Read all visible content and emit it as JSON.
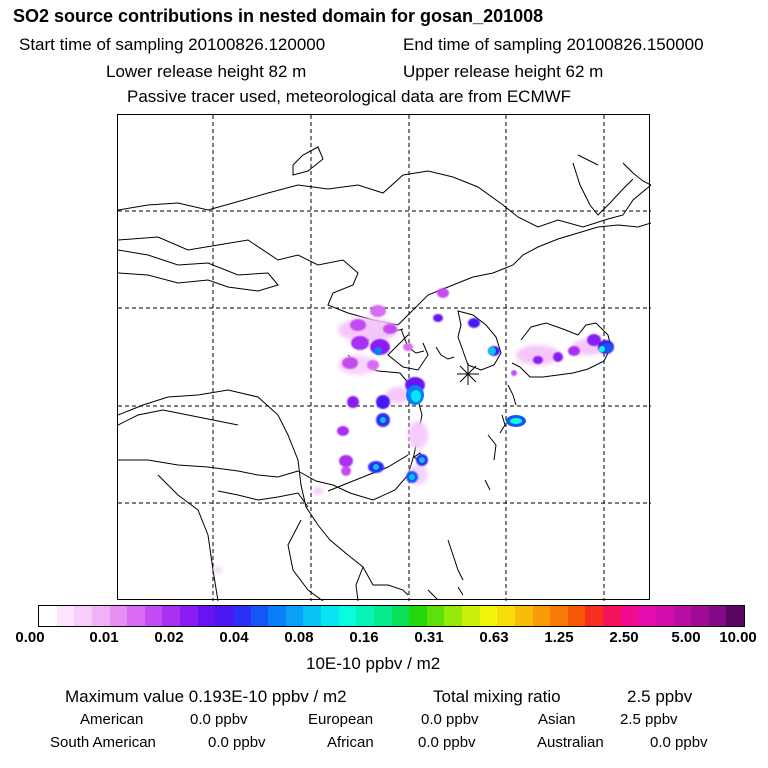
{
  "header": {
    "title": "SO2 source contributions in nested domain for gosan_201008",
    "start_label": "Start time of sampling 20100826.120000",
    "end_label": "End time of sampling 20100826.150000",
    "lower_label": "Lower release height   82 m",
    "upper_label": "Upper release height   62 m",
    "tracer_label": "Passive tracer used, meteorological data are from ECMWF"
  },
  "colorbar": {
    "ticks": [
      "0.00",
      "0.01",
      "0.02",
      "0.04",
      "0.08",
      "0.16",
      "0.31",
      "0.63",
      "1.25",
      "2.50",
      "5.00",
      "10.00"
    ],
    "unit": "10E-10 ppbv / m2",
    "colors": [
      "#ffffff",
      "#fde6fd",
      "#f8ccfb",
      "#f1b1f9",
      "#e690f6",
      "#d86af4",
      "#c44cf2",
      "#a92ff1",
      "#8a1cf2",
      "#6913f3",
      "#4b18f4",
      "#2d2ff5",
      "#1456f6",
      "#0a7ef6",
      "#09a1f6",
      "#0ac3f5",
      "#0ae4f2",
      "#0afbe0",
      "#09f3b7",
      "#09ea8b",
      "#0ae05a",
      "#22d80d",
      "#5ee10a",
      "#96ea0a",
      "#c9f10b",
      "#f4f50c",
      "#f8dc0b",
      "#f8bd0a",
      "#f89c0a",
      "#f87a09",
      "#f65608",
      "#f42f20",
      "#f4135c",
      "#f10c8d",
      "#e50dad",
      "#d20dae",
      "#b90ea4",
      "#9e0c96",
      "#820a86",
      "#5a0560"
    ]
  },
  "stats": {
    "max_label": "Maximum value  0.193E-10 ppbv / m2",
    "total_label": "Total mixing ratio",
    "total_value": "2.5 ppbv",
    "american_label": "American",
    "american_value": "0.0 ppbv",
    "european_label": "European",
    "european_value": "0.0 ppbv",
    "asian_label": "Asian",
    "asian_value": "2.5 ppbv",
    "south_american_label": "South American",
    "south_american_value": "0.0 ppbv",
    "african_label": "African",
    "african_value": "0.0 ppbv",
    "australian_label": "Australian",
    "australian_value": "0.0 ppbv"
  }
}
